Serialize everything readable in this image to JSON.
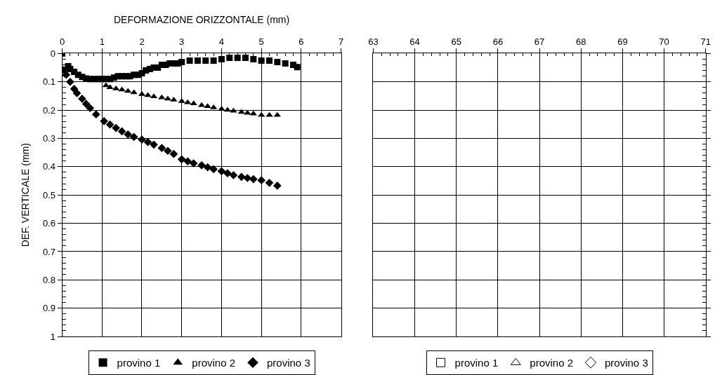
{
  "chart_data": [
    {
      "type": "scatter",
      "xlabel": "DEFORMAZIONE ORIZZONTALE (mm)",
      "ylabel": "DEF. VERTICALE (mm)",
      "xlim": [
        0,
        7
      ],
      "xticks": [
        0,
        1,
        2,
        3,
        4,
        5,
        6,
        7
      ],
      "ylim": [
        1,
        0
      ],
      "yticks": [
        0,
        0.1,
        0.2,
        0.3,
        0.4,
        0.5,
        0.6,
        0.7,
        0.8,
        0.9,
        1
      ],
      "grid": true,
      "legend": "bottom",
      "series": [
        {
          "name": "provino 1",
          "color": "#000000",
          "marker": "square",
          "x": [
            0,
            0.15,
            0.2,
            0.3,
            0.4,
            0.5,
            0.6,
            0.7,
            0.8,
            0.9,
            1.0,
            1.1,
            1.2,
            1.3,
            1.4,
            1.5,
            1.6,
            1.7,
            1.8,
            1.9,
            2.0,
            2.1,
            2.2,
            2.3,
            2.4,
            2.5,
            2.6,
            2.7,
            2.8,
            2.9,
            3.0,
            3.2,
            3.4,
            3.6,
            3.8,
            4.0,
            4.2,
            4.4,
            4.6,
            4.8,
            5.0,
            5.2,
            5.4,
            5.6,
            5.8,
            5.9
          ],
          "values": [
            0,
            0.045,
            0.055,
            0.065,
            0.075,
            0.083,
            0.088,
            0.09,
            0.09,
            0.09,
            0.09,
            0.09,
            0.09,
            0.085,
            0.08,
            0.08,
            0.08,
            0.08,
            0.075,
            0.075,
            0.07,
            0.06,
            0.055,
            0.05,
            0.05,
            0.04,
            0.04,
            0.035,
            0.035,
            0.035,
            0.03,
            0.025,
            0.025,
            0.025,
            0.025,
            0.02,
            0.015,
            0.015,
            0.015,
            0.02,
            0.025,
            0.025,
            0.03,
            0.035,
            0.04,
            0.048
          ]
        },
        {
          "name": "provino 2",
          "color": "#000000",
          "marker": "triangle",
          "x": [
            1.1,
            1.2,
            1.35,
            1.5,
            1.65,
            1.8,
            2.0,
            2.15,
            2.3,
            2.5,
            2.65,
            2.8,
            3.0,
            3.15,
            3.3,
            3.5,
            3.65,
            3.8,
            4.0,
            4.15,
            4.3,
            4.5,
            4.65,
            4.8,
            5.0,
            5.2,
            5.4
          ],
          "values": [
            0.113,
            0.12,
            0.124,
            0.128,
            0.133,
            0.138,
            0.144,
            0.148,
            0.152,
            0.156,
            0.16,
            0.164,
            0.169,
            0.173,
            0.177,
            0.183,
            0.187,
            0.191,
            0.196,
            0.2,
            0.203,
            0.207,
            0.21,
            0.213,
            0.218,
            0.218,
            0.218
          ]
        },
        {
          "name": "provino 3",
          "color": "#000000",
          "marker": "diamond",
          "x": [
            0.04,
            0.1,
            0.2,
            0.3,
            0.37,
            0.5,
            0.6,
            0.7,
            0.85,
            1.05,
            1.2,
            1.35,
            1.5,
            1.65,
            1.8,
            2.0,
            2.15,
            2.3,
            2.5,
            2.65,
            2.8,
            3.0,
            3.15,
            3.3,
            3.5,
            3.65,
            3.8,
            4.0,
            4.15,
            4.3,
            4.5,
            4.65,
            4.8,
            5.0,
            5.2,
            5.4
          ],
          "values": [
            0.058,
            0.075,
            0.1,
            0.125,
            0.14,
            0.16,
            0.178,
            0.193,
            0.215,
            0.239,
            0.251,
            0.263,
            0.275,
            0.286,
            0.295,
            0.304,
            0.313,
            0.322,
            0.334,
            0.344,
            0.355,
            0.374,
            0.381,
            0.388,
            0.395,
            0.402,
            0.409,
            0.416,
            0.423,
            0.43,
            0.436,
            0.44,
            0.444,
            0.448,
            0.457,
            0.467
          ]
        }
      ]
    },
    {
      "type": "scatter",
      "xlim": [
        63,
        71
      ],
      "xticks": [
        63,
        64,
        65,
        66,
        67,
        68,
        69,
        70,
        71
      ],
      "ylim": [
        1,
        0
      ],
      "yticks": [
        0,
        0.1,
        0.2,
        0.3,
        0.4,
        0.5,
        0.6,
        0.7,
        0.8,
        0.9,
        1
      ],
      "grid": true,
      "legend": "bottom",
      "tick_labels": "x",
      "series": [
        {
          "name": "provino 1",
          "color": "#000000",
          "marker": "square-open",
          "x": [
            null
          ],
          "values": [
            null
          ]
        },
        {
          "name": "provino 2",
          "color": "#000000",
          "marker": "triangle-open",
          "x": [
            null
          ],
          "values": [
            null
          ]
        },
        {
          "name": "provino 3",
          "color": "#000000",
          "marker": "diamond-open",
          "x": [
            null
          ],
          "values": [
            null
          ]
        }
      ]
    }
  ]
}
